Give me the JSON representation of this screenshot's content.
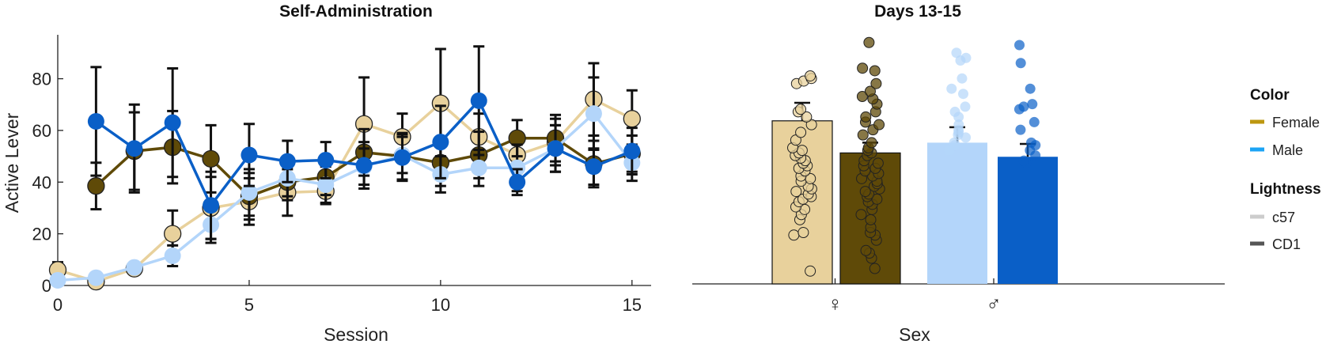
{
  "chart_data": [
    {
      "type": "line",
      "title": "Self-Administration",
      "xlabel": "Session",
      "ylabel": "Active Lever",
      "xlim": [
        0,
        15.5
      ],
      "ylim": [
        0,
        97
      ],
      "xticks": [
        "0",
        "5",
        "10",
        "15"
      ],
      "yticks": [
        "0",
        "20",
        "40",
        "60",
        "80"
      ],
      "x": [
        0,
        1,
        2,
        3,
        4,
        5,
        6,
        7,
        8,
        9,
        10,
        11,
        12,
        13,
        14,
        15
      ],
      "series": [
        {
          "sex": "Female",
          "strain": "c57",
          "color": "#e8d19c",
          "values": [
            6,
            1.5,
            6.5,
            20,
            30,
            32.5,
            36,
            36.5,
            62.5,
            57.5,
            70.5,
            57.5,
            50.5,
            55.5,
            72,
            64.5
          ],
          "error": [
            3,
            1,
            1.5,
            9,
            12,
            9,
            9,
            5,
            18,
            9,
            21,
            9,
            7,
            9,
            14,
            11
          ]
        },
        {
          "sex": "Female",
          "strain": "CD1",
          "color": "#5f4a08",
          "values": [
            null,
            38.5,
            52,
            53.5,
            49,
            34.5,
            40,
            42,
            51.5,
            50,
            47.5,
            50.5,
            57,
            57,
            47,
            51
          ],
          "error": [
            null,
            9,
            15,
            14,
            13,
            9,
            7,
            7,
            9,
            9,
            9,
            9,
            7,
            9,
            9,
            7
          ]
        },
        {
          "sex": "Male",
          "strain": "c57",
          "color": "#b3d5fa",
          "values": [
            2,
            3,
            7,
            11.5,
            23.5,
            36,
            41.5,
            39,
            46,
            50.5,
            43,
            45.5,
            45.5,
            53,
            66.5,
            47.5
          ],
          "error": [
            1,
            1,
            1.5,
            4,
            7,
            9,
            7,
            7,
            7,
            7,
            7,
            7,
            9,
            9,
            14,
            7
          ]
        },
        {
          "sex": "Male",
          "strain": "CD1",
          "color": "#0a5fc7",
          "values": [
            null,
            63.5,
            53,
            63,
            31,
            50.5,
            48,
            48.5,
            46.5,
            49.5,
            55.5,
            71.5,
            40,
            53,
            46,
            52
          ],
          "error": [
            null,
            21,
            17,
            21,
            13,
            12,
            8,
            7,
            9,
            9,
            14,
            21,
            5,
            9,
            7,
            9
          ]
        }
      ]
    },
    {
      "type": "bar",
      "title": "Days 13-15",
      "xlabel": "Sex",
      "ylabel": "",
      "categories": [
        "♀",
        "♂"
      ],
      "ylim": [
        0,
        97
      ],
      "bars": [
        {
          "sex": "Female",
          "strain": "c57",
          "color": "#e8d19c",
          "value": 63.5,
          "error": 7,
          "points": [
            5,
            19,
            20,
            25,
            27,
            29,
            30,
            32,
            33,
            34,
            35,
            36,
            37,
            38,
            40,
            41,
            42,
            44,
            45,
            46,
            47,
            48,
            49,
            50,
            51,
            52,
            53,
            56,
            59,
            62,
            65,
            67,
            68,
            78,
            79,
            80,
            81
          ]
        },
        {
          "sex": "Female",
          "strain": "CD1",
          "color": "#5f4a08",
          "value": 51,
          "error": 4,
          "points": [
            6,
            10,
            12,
            13,
            17,
            19,
            20,
            22,
            25,
            27,
            29,
            31,
            32,
            33,
            34,
            35,
            36,
            37,
            38,
            39,
            40,
            41,
            42,
            43,
            44,
            45,
            46,
            47,
            48,
            50,
            51,
            52,
            53,
            55,
            58,
            60,
            62,
            63,
            65,
            67,
            70,
            72,
            73,
            75,
            78,
            83,
            84,
            94
          ]
        },
        {
          "sex": "Male",
          "strain": "c57",
          "color": "#b3d5fa",
          "value": 55,
          "error": 6,
          "points": [
            52,
            54,
            55,
            57,
            58,
            59,
            60,
            62,
            65,
            67,
            69,
            74,
            76,
            80,
            87,
            88,
            90
          ]
        },
        {
          "sex": "Male",
          "strain": "CD1",
          "color": "#0a5fc7",
          "value": 49.5,
          "error": 5,
          "points": [
            47,
            48,
            50,
            52,
            54,
            55,
            60,
            63,
            68,
            69,
            70,
            76,
            86,
            93
          ]
        }
      ]
    }
  ],
  "legend": {
    "placement": "right",
    "color_title": "Color",
    "color_items": [
      {
        "label": "Female",
        "color": "#bd9710"
      },
      {
        "label": "Male",
        "color": "#1ca4f5"
      }
    ],
    "lightness_title": "Lightness",
    "lightness_items": [
      {
        "label": "c57",
        "color": "#cccccc"
      },
      {
        "label": "CD1",
        "color": "#555555"
      }
    ]
  }
}
